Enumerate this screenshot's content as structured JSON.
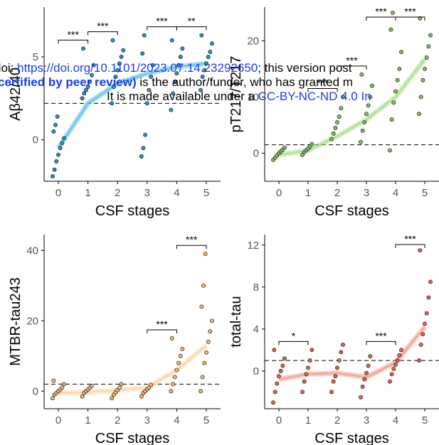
{
  "chart_data": [
    {
      "type": "strip",
      "ylabel": "Aβ42/40",
      "xlabel": "CSF stages",
      "categories": [
        "0",
        "1",
        "2",
        "3",
        "4",
        "5"
      ],
      "color": "#2b93c6",
      "trend_color": "#5bbde6",
      "ylim": [
        -2.5,
        8
      ],
      "yticks": [
        0,
        5
      ],
      "threshold": 2.2,
      "points": [
        [
          -2.2,
          -1.8,
          -1.3,
          -0.9,
          -0.5,
          -0.2,
          0.1,
          0.5,
          0.9,
          1.4
        ],
        [
          2.5,
          2.8,
          3.0,
          3.2,
          3.5,
          3.9,
          4.5,
          5.5
        ],
        [
          2.2,
          3.2,
          3.8,
          4.2,
          4.6,
          5.0,
          5.4,
          6.0
        ],
        [
          -1.0,
          -0.5,
          0.3,
          2.2,
          3.0,
          3.8,
          4.5,
          5.2,
          6.3
        ],
        [
          1.8,
          2.8,
          3.5,
          4.0,
          4.5,
          5.0,
          5.5,
          6.0
        ],
        [
          3.0,
          3.8,
          4.2,
          4.6,
          5.0,
          5.3,
          5.8,
          6.3
        ]
      ],
      "trend": [
        -0.5,
        2.2,
        3.4,
        4.0,
        4.4,
        4.6
      ],
      "significance": [
        "***",
        "***",
        null,
        "***",
        "**"
      ]
    },
    {
      "type": "strip",
      "ylabel": "pT217/T217",
      "xlabel": "CSF stages",
      "categories": [
        "0",
        "1",
        "2",
        "3",
        "4",
        "5"
      ],
      "color": "#7cc35a",
      "trend_color": "#a6dc86",
      "ylim": [
        -5,
        26
      ],
      "yticks": [
        0,
        10,
        20
      ],
      "threshold": 1.5,
      "points": [
        [
          -1.2,
          -0.8,
          -0.4,
          0,
          0.3,
          0.6,
          1.0
        ],
        [
          -0.3,
          0.2,
          0.5,
          0.8,
          1.2,
          1.6
        ],
        [
          2.5,
          3.5,
          4.5,
          5.5,
          6.5,
          8,
          10
        ],
        [
          2,
          4,
          5.5,
          7,
          8.5,
          10,
          12,
          14
        ],
        [
          0.5,
          6,
          9,
          11,
          13,
          15,
          18,
          22,
          25
        ],
        [
          7,
          10,
          13,
          15,
          17,
          19,
          21,
          24
        ]
      ],
      "trend": [
        -0.3,
        0.5,
        3,
        6,
        10,
        16.7
      ],
      "significance": [
        null,
        "***",
        "***",
        "***",
        "***"
      ]
    },
    {
      "type": "strip",
      "ylabel": "MTBR-tau243",
      "xlabel": "CSF stages",
      "categories": [
        "0",
        "1",
        "2",
        "3",
        "4",
        "5"
      ],
      "color": "#f6b672",
      "trend_color": "#fbd2a4",
      "ylim": [
        -5,
        44.5
      ],
      "yticks": [
        0,
        20,
        40
      ],
      "threshold": 2,
      "points": [
        [
          -2,
          -1,
          -0.5,
          0,
          0.5,
          1,
          2,
          3
        ],
        [
          -1.5,
          -0.5,
          0,
          0.5,
          1,
          1.5
        ],
        [
          -2,
          -1,
          -0.3,
          0.3,
          1,
          2
        ],
        [
          -1.5,
          -0.5,
          0,
          0.5,
          1,
          1.8
        ],
        [
          0,
          2,
          4,
          6,
          8,
          10,
          12,
          15
        ],
        [
          0,
          4,
          8,
          11,
          14,
          17,
          20,
          24,
          30,
          39
        ]
      ],
      "trend": [
        -0.5,
        -0.3,
        0.3,
        1,
        6,
        13
      ],
      "significance": [
        null,
        null,
        null,
        "***",
        "***"
      ]
    },
    {
      "type": "strip",
      "ylabel": "total-tau",
      "xlabel": "CSF stages",
      "categories": [
        "0",
        "1",
        "2",
        "3",
        "4",
        "5"
      ],
      "color": "#e4634a",
      "trend_color": "#f19a87",
      "ylim": [
        -3.6,
        13
      ],
      "yticks": [
        0,
        4,
        8,
        12
      ],
      "threshold": 1,
      "points": [
        [
          -3,
          -2,
          -1.2,
          -0.5,
          0,
          0.5,
          1.2,
          2
        ],
        [
          -2,
          -1,
          -0.3,
          0.3,
          1,
          2
        ],
        [
          -2,
          -1,
          -0.5,
          0.3,
          1,
          1.8,
          2.5
        ],
        [
          -2.5,
          -1.5,
          -0.8,
          -0.2,
          0.5,
          1.4
        ],
        [
          -1,
          -0.3,
          0.2,
          0.6,
          1,
          1.5,
          2
        ],
        [
          1,
          2.5,
          3.5,
          4.5,
          5.5,
          7,
          8.5,
          11.5
        ]
      ],
      "trend": [
        -0.8,
        -0.3,
        -0.2,
        -0.6,
        0.8,
        4.2
      ],
      "significance": [
        "*",
        null,
        null,
        "***",
        "***"
      ]
    }
  ],
  "watermark": {
    "line1": [
      "doi: ",
      "https://doi.org/10.1101/2023.07.14.23292650",
      "; this version post"
    ],
    "line2": [
      "certified by peer review)",
      " is the author/funder, who has granted m"
    ],
    "line3": [
      "It is made available under a ",
      "CC-BY-NC-ND 4.0 In"
    ]
  }
}
